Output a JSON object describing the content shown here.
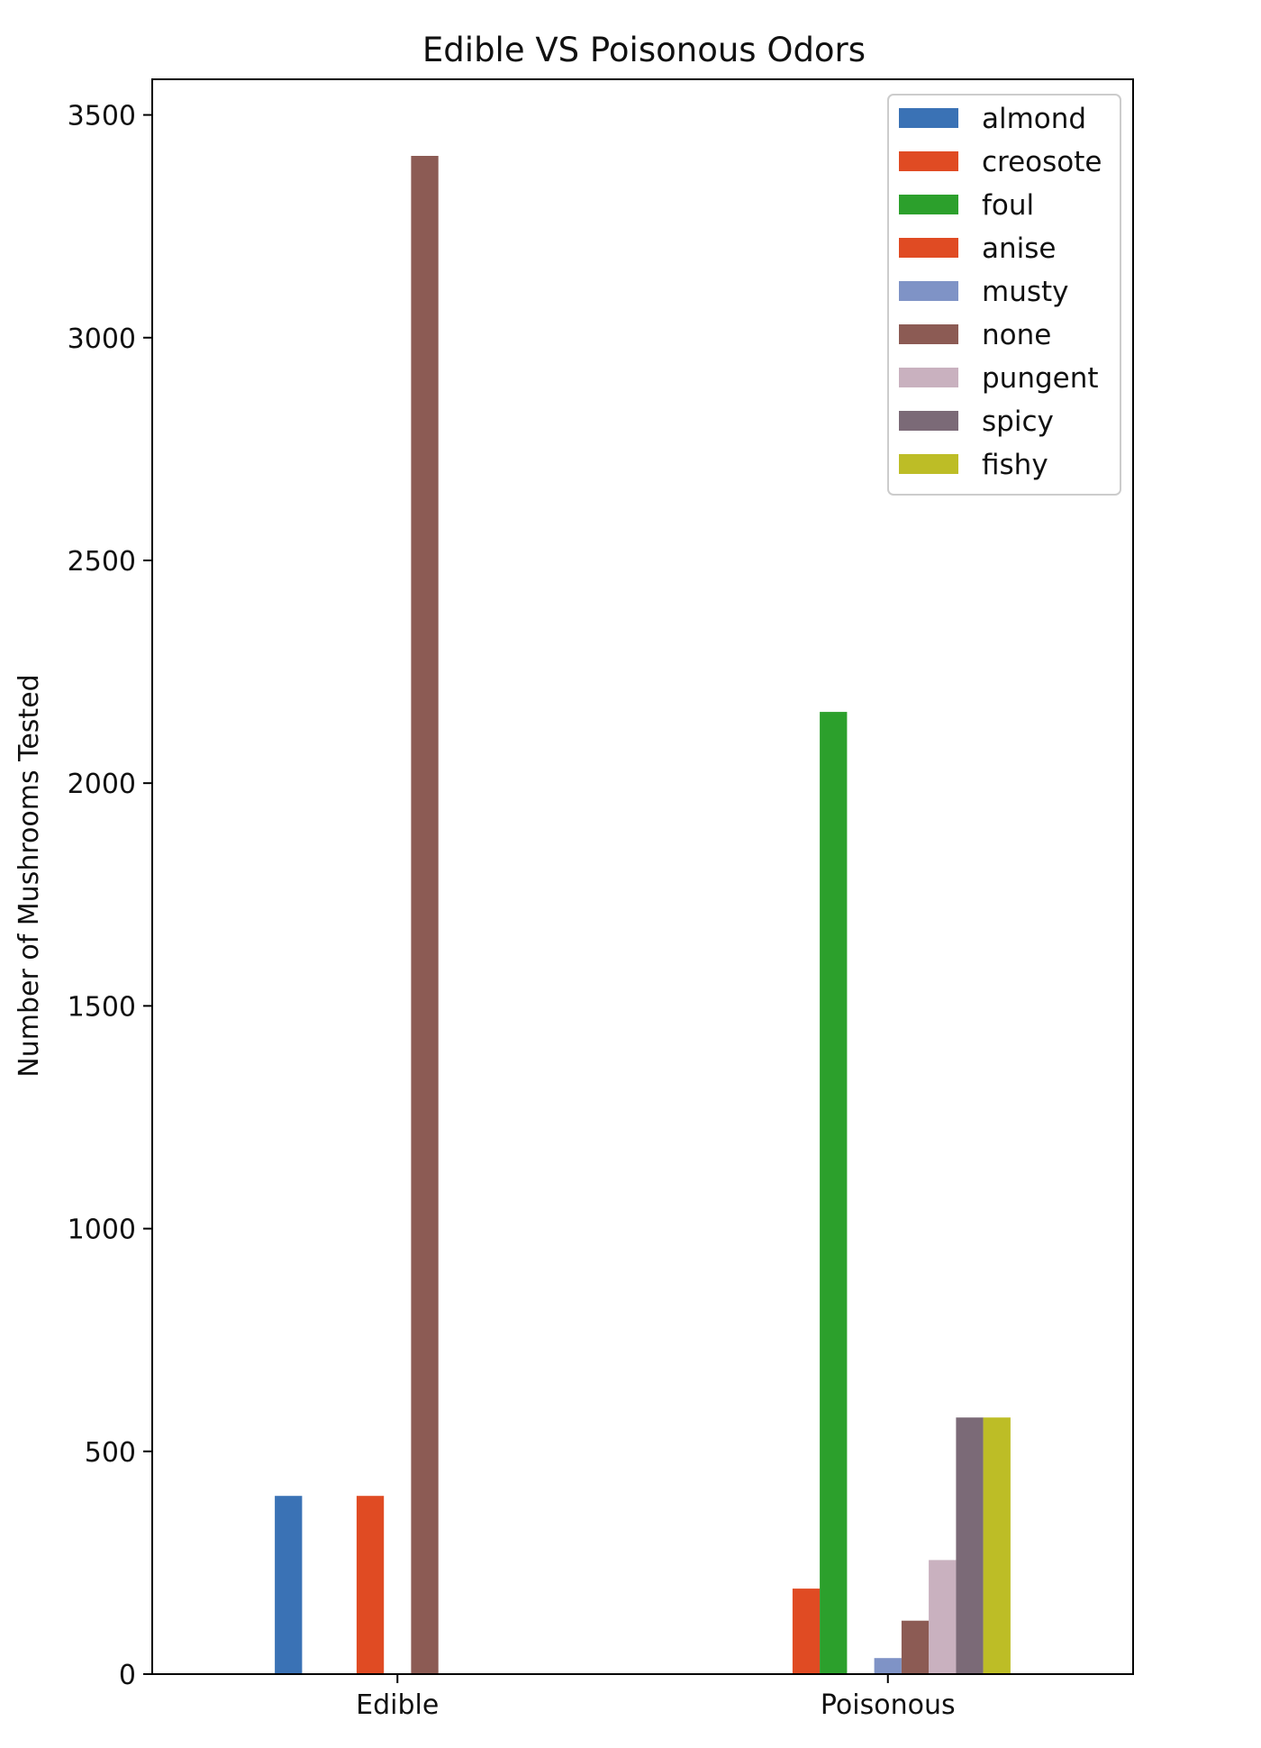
{
  "chart_data": {
    "type": "bar",
    "title": "Edible VS Poisonous Odors",
    "xlabel": "",
    "ylabel": "Number of Mushrooms Tested",
    "categories": [
      "Edible",
      "Poisonous"
    ],
    "ylim": [
      0,
      3580
    ],
    "yticks": [
      "0",
      "500",
      "1000",
      "1500",
      "2000",
      "2500",
      "3000",
      "3500"
    ],
    "grid": false,
    "legend_position": "top-right",
    "series": [
      {
        "name": "almond",
        "color": "#3a72b5",
        "values": [
          400,
          0
        ]
      },
      {
        "name": "creosote",
        "color": "#e04b23",
        "values": [
          0,
          192
        ]
      },
      {
        "name": "foul",
        "color": "#2ca02c",
        "values": [
          0,
          2160
        ]
      },
      {
        "name": "anise",
        "color": "#e04b23",
        "values": [
          400,
          0
        ]
      },
      {
        "name": "musty",
        "color": "#7f93c6",
        "values": [
          0,
          36
        ]
      },
      {
        "name": "none",
        "color": "#8c5b54",
        "values": [
          3408,
          120
        ]
      },
      {
        "name": "pungent",
        "color": "#c9b1bf",
        "values": [
          0,
          256
        ]
      },
      {
        "name": "spicy",
        "color": "#7b6a77",
        "values": [
          0,
          576
        ]
      },
      {
        "name": "fishy",
        "color": "#bdbd26",
        "values": [
          0,
          576
        ]
      }
    ]
  }
}
